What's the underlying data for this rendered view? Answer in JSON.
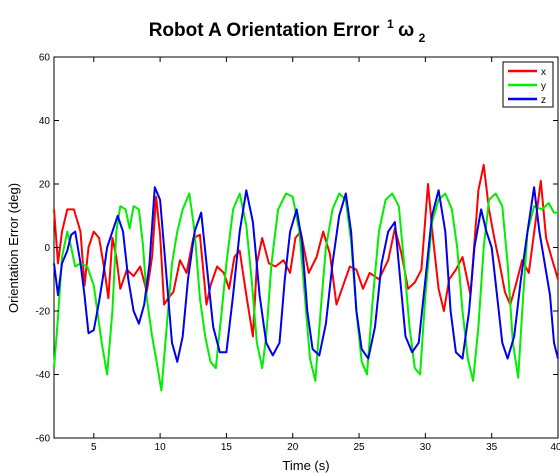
{
  "chart_data": {
    "type": "line",
    "title_text": "Robot A Orientation Error",
    "title_superscript": "1",
    "title_symbol": "ω",
    "title_subscript": "2",
    "xlabel": "Time (s)",
    "ylabel": "Orientation Error (deg)",
    "xlim": [
      2,
      40
    ],
    "ylim": [
      -60,
      60
    ],
    "x_ticks": [
      5,
      10,
      15,
      20,
      25,
      30,
      35,
      40
    ],
    "y_ticks": [
      -60,
      -40,
      -20,
      0,
      20,
      40,
      60
    ],
    "grid": false,
    "legend_position": "top-right",
    "series": [
      {
        "name": "x",
        "color": "#ff0000",
        "points": [
          [
            2,
            12
          ],
          [
            2.3,
            -5
          ],
          [
            2.6,
            5
          ],
          [
            3,
            12
          ],
          [
            3.5,
            12
          ],
          [
            4,
            5
          ],
          [
            4.3,
            -12
          ],
          [
            4.6,
            0
          ],
          [
            5,
            5
          ],
          [
            5.4,
            3
          ],
          [
            5.8,
            -7
          ],
          [
            6.1,
            -16
          ],
          [
            6.4,
            3
          ],
          [
            6.7,
            -3
          ],
          [
            7,
            -13
          ],
          [
            7.5,
            -7
          ],
          [
            8,
            -9
          ],
          [
            8.5,
            -6
          ],
          [
            9,
            -14
          ],
          [
            9.4,
            -3
          ],
          [
            9.7,
            16
          ],
          [
            10,
            4
          ],
          [
            10.3,
            -18
          ],
          [
            10.6,
            -16
          ],
          [
            11,
            -14
          ],
          [
            11.5,
            -4
          ],
          [
            12,
            -8
          ],
          [
            12.5,
            3
          ],
          [
            13,
            4
          ],
          [
            13.5,
            -18
          ],
          [
            13.8,
            -12
          ],
          [
            14.3,
            -6
          ],
          [
            14.8,
            -8
          ],
          [
            15.2,
            -13
          ],
          [
            15.6,
            -3
          ],
          [
            16,
            -1
          ],
          [
            16.5,
            -15
          ],
          [
            17,
            -28
          ],
          [
            17.3,
            -5
          ],
          [
            17.7,
            3
          ],
          [
            18.2,
            -5
          ],
          [
            18.7,
            -6
          ],
          [
            19.3,
            -4
          ],
          [
            19.8,
            -8
          ],
          [
            20.2,
            3
          ],
          [
            20.6,
            5
          ],
          [
            21.2,
            -8
          ],
          [
            21.8,
            -3
          ],
          [
            22.3,
            5
          ],
          [
            22.8,
            -2
          ],
          [
            23.3,
            -18
          ],
          [
            23.8,
            -12
          ],
          [
            24.3,
            -6
          ],
          [
            24.8,
            -7
          ],
          [
            25.3,
            -13
          ],
          [
            25.8,
            -8
          ],
          [
            26.5,
            -10
          ],
          [
            27.2,
            -4
          ],
          [
            27.7,
            6
          ],
          [
            28.2,
            -2
          ],
          [
            28.7,
            -13
          ],
          [
            29.2,
            -11
          ],
          [
            29.7,
            -7
          ],
          [
            30.2,
            20
          ],
          [
            30.6,
            2
          ],
          [
            31,
            -13
          ],
          [
            31.4,
            -20
          ],
          [
            31.8,
            -10
          ],
          [
            32.3,
            -7
          ],
          [
            32.8,
            -3
          ],
          [
            33.4,
            -15
          ],
          [
            34,
            18
          ],
          [
            34.4,
            26
          ],
          [
            34.8,
            12
          ],
          [
            35.2,
            3
          ],
          [
            35.6,
            -5
          ],
          [
            36,
            -14
          ],
          [
            36.4,
            -18
          ],
          [
            36.8,
            -12
          ],
          [
            37.3,
            -4
          ],
          [
            37.8,
            -8
          ],
          [
            38.3,
            8
          ],
          [
            38.7,
            21
          ],
          [
            39.1,
            3
          ],
          [
            39.5,
            -3
          ],
          [
            40,
            -10
          ]
        ]
      },
      {
        "name": "y",
        "color": "#00ee00",
        "points": [
          [
            2,
            -38
          ],
          [
            2.3,
            -22
          ],
          [
            2.6,
            -3
          ],
          [
            3,
            5
          ],
          [
            3.3,
            0
          ],
          [
            3.6,
            -6
          ],
          [
            4,
            -5
          ],
          [
            4.5,
            -6
          ],
          [
            5,
            -12
          ],
          [
            5.6,
            -30
          ],
          [
            6,
            -40
          ],
          [
            6.4,
            -20
          ],
          [
            6.7,
            5
          ],
          [
            7,
            13
          ],
          [
            7.4,
            12
          ],
          [
            7.7,
            6
          ],
          [
            8,
            13
          ],
          [
            8.4,
            12
          ],
          [
            8.7,
            1
          ],
          [
            9,
            -16
          ],
          [
            9.4,
            -28
          ],
          [
            9.7,
            -35
          ],
          [
            10.1,
            -45
          ],
          [
            10.5,
            -25
          ],
          [
            10.9,
            -5
          ],
          [
            11.3,
            5
          ],
          [
            11.7,
            12
          ],
          [
            12.2,
            17
          ],
          [
            12.6,
            5
          ],
          [
            13,
            -16
          ],
          [
            13.4,
            -28
          ],
          [
            13.8,
            -36
          ],
          [
            14.2,
            -38
          ],
          [
            14.6,
            -22
          ],
          [
            15,
            -5
          ],
          [
            15.5,
            12
          ],
          [
            16,
            17
          ],
          [
            16.5,
            7
          ],
          [
            16.9,
            -10
          ],
          [
            17.3,
            -30
          ],
          [
            17.7,
            -38
          ],
          [
            18,
            -28
          ],
          [
            18.4,
            -5
          ],
          [
            18.9,
            12
          ],
          [
            19.5,
            17
          ],
          [
            20,
            16
          ],
          [
            20.5,
            5
          ],
          [
            20.9,
            -15
          ],
          [
            21.3,
            -35
          ],
          [
            21.7,
            -42
          ],
          [
            22.1,
            -20
          ],
          [
            22.5,
            0
          ],
          [
            23,
            12
          ],
          [
            23.5,
            17
          ],
          [
            24,
            15
          ],
          [
            24.4,
            2
          ],
          [
            24.8,
            -20
          ],
          [
            25.2,
            -36
          ],
          [
            25.6,
            -40
          ],
          [
            26,
            -18
          ],
          [
            26.5,
            5
          ],
          [
            27,
            15
          ],
          [
            27.5,
            17
          ],
          [
            28,
            13
          ],
          [
            28.4,
            -5
          ],
          [
            28.8,
            -25
          ],
          [
            29.2,
            -38
          ],
          [
            29.6,
            -40
          ],
          [
            30,
            -15
          ],
          [
            30.5,
            8
          ],
          [
            31,
            15
          ],
          [
            31.5,
            17
          ],
          [
            32,
            12
          ],
          [
            32.4,
            0
          ],
          [
            32.8,
            -20
          ],
          [
            33.2,
            -35
          ],
          [
            33.6,
            -42
          ],
          [
            34,
            -25
          ],
          [
            34.4,
            0
          ],
          [
            34.8,
            15
          ],
          [
            35.3,
            17
          ],
          [
            35.8,
            13
          ],
          [
            36.2,
            -5
          ],
          [
            36.6,
            -30
          ],
          [
            37,
            -41
          ],
          [
            37.3,
            -20
          ],
          [
            37.7,
            5
          ],
          [
            38.2,
            13
          ],
          [
            38.8,
            12
          ],
          [
            39.3,
            14
          ],
          [
            39.7,
            11
          ],
          [
            40,
            11
          ]
        ]
      },
      {
        "name": "z",
        "color": "#0000ee",
        "points": [
          [
            2,
            -5
          ],
          [
            2.3,
            -15
          ],
          [
            2.6,
            -5
          ],
          [
            3,
            -1
          ],
          [
            3.3,
            4
          ],
          [
            3.6,
            5
          ],
          [
            4,
            -5
          ],
          [
            4.3,
            -15
          ],
          [
            4.6,
            -27
          ],
          [
            5,
            -26
          ],
          [
            5.4,
            -17
          ],
          [
            5.7,
            -9
          ],
          [
            6,
            0
          ],
          [
            6.4,
            5
          ],
          [
            6.8,
            10
          ],
          [
            7.2,
            5
          ],
          [
            7.6,
            -10
          ],
          [
            8.0,
            -20
          ],
          [
            8.4,
            -24
          ],
          [
            8.8,
            -18
          ],
          [
            9.2,
            -5
          ],
          [
            9.6,
            19
          ],
          [
            10,
            15
          ],
          [
            10.4,
            -5
          ],
          [
            10.9,
            -30
          ],
          [
            11.3,
            -36
          ],
          [
            11.7,
            -28
          ],
          [
            12.1,
            -10
          ],
          [
            12.6,
            5
          ],
          [
            13.1,
            11
          ],
          [
            13.5,
            -5
          ],
          [
            14,
            -25
          ],
          [
            14.5,
            -33
          ],
          [
            15,
            -33
          ],
          [
            15.5,
            -15
          ],
          [
            16,
            5
          ],
          [
            16.5,
            18
          ],
          [
            17,
            8
          ],
          [
            17.5,
            -15
          ],
          [
            18,
            -30
          ],
          [
            18.5,
            -34
          ],
          [
            19,
            -30
          ],
          [
            19.4,
            -10
          ],
          [
            19.8,
            5
          ],
          [
            20.3,
            12
          ],
          [
            20.7,
            2
          ],
          [
            21.1,
            -20
          ],
          [
            21.5,
            -32
          ],
          [
            22,
            -34
          ],
          [
            22.5,
            -24
          ],
          [
            23,
            -5
          ],
          [
            23.5,
            10
          ],
          [
            24,
            17
          ],
          [
            24.4,
            5
          ],
          [
            24.8,
            -20
          ],
          [
            25.2,
            -32
          ],
          [
            25.7,
            -35
          ],
          [
            26.2,
            -25
          ],
          [
            26.7,
            -5
          ],
          [
            27.2,
            5
          ],
          [
            27.7,
            8
          ],
          [
            28.1,
            -10
          ],
          [
            28.5,
            -28
          ],
          [
            29,
            -33
          ],
          [
            29.5,
            -30
          ],
          [
            30,
            -10
          ],
          [
            30.5,
            10
          ],
          [
            31,
            18
          ],
          [
            31.5,
            5
          ],
          [
            31.9,
            -20
          ],
          [
            32.3,
            -33
          ],
          [
            32.8,
            -35
          ],
          [
            33.3,
            -20
          ],
          [
            33.7,
            0
          ],
          [
            34.2,
            12
          ],
          [
            34.6,
            5
          ],
          [
            35,
            0
          ],
          [
            35.4,
            -15
          ],
          [
            35.8,
            -30
          ],
          [
            36.2,
            -35
          ],
          [
            36.7,
            -28
          ],
          [
            37.2,
            -10
          ],
          [
            37.7,
            5
          ],
          [
            38.2,
            19
          ],
          [
            38.6,
            5
          ],
          [
            39,
            -5
          ],
          [
            39.4,
            -15
          ],
          [
            39.7,
            -30
          ],
          [
            40,
            -35
          ]
        ]
      }
    ]
  }
}
